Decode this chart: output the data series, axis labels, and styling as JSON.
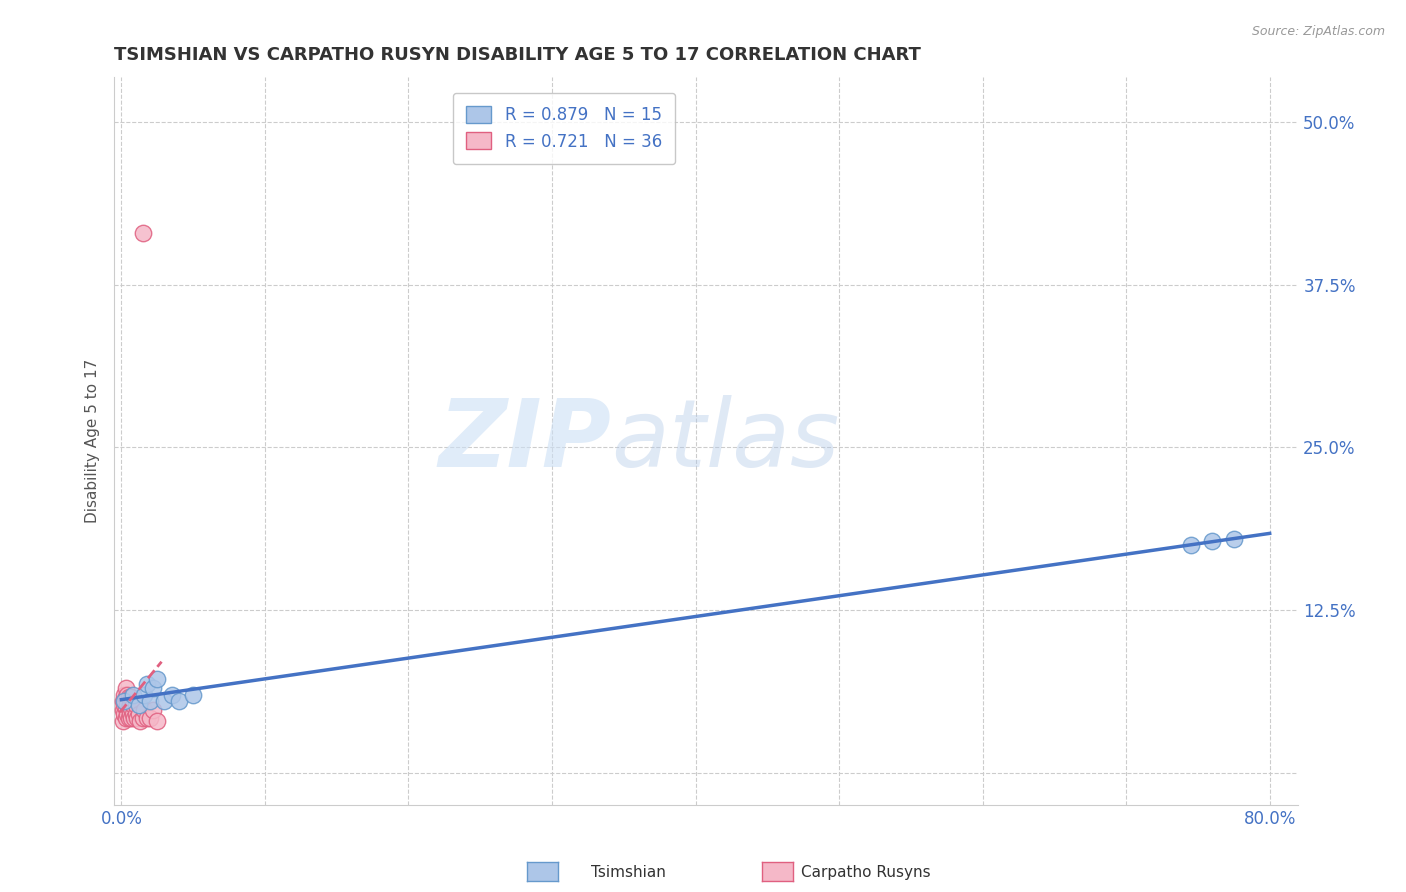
{
  "title": "TSIMSHIAN VS CARPATHO RUSYN DISABILITY AGE 5 TO 17 CORRELATION CHART",
  "source": "Source: ZipAtlas.com",
  "ylabel": "Disability Age 5 to 17",
  "xlim": [
    -0.005,
    0.82
  ],
  "ylim": [
    -0.025,
    0.535
  ],
  "x_ticks": [
    0.0,
    0.1,
    0.2,
    0.3,
    0.4,
    0.5,
    0.6,
    0.7,
    0.8
  ],
  "x_tick_labels": [
    "0.0%",
    "",
    "",
    "",
    "",
    "",
    "",
    "",
    "80.0%"
  ],
  "y_ticks": [
    0.0,
    0.125,
    0.25,
    0.375,
    0.5
  ],
  "y_tick_labels": [
    "",
    "12.5%",
    "25.0%",
    "37.5%",
    "50.0%"
  ],
  "grid_color": "#cccccc",
  "background_color": "#ffffff",
  "tsimshian_color": "#adc6e8",
  "tsimshian_edge_color": "#6699cc",
  "carpatho_color": "#f5b8c8",
  "carpatho_edge_color": "#e06080",
  "tsimshian_line_color": "#4472c4",
  "carpatho_line_color": "#e06080",
  "legend_label_1": "R = 0.879   N = 15",
  "legend_label_2": "R = 0.721   N = 36",
  "watermark_zip": "ZIP",
  "watermark_atlas": "atlas",
  "tsimshian_x": [
    0.002,
    0.008,
    0.012,
    0.016,
    0.018,
    0.02,
    0.022,
    0.025,
    0.03,
    0.035,
    0.04,
    0.05,
    0.745,
    0.76,
    0.775
  ],
  "tsimshian_y": [
    0.055,
    0.06,
    0.052,
    0.06,
    0.068,
    0.055,
    0.065,
    0.072,
    0.055,
    0.06,
    0.055,
    0.06,
    0.175,
    0.178,
    0.18
  ],
  "carpatho_x": [
    0.001,
    0.001,
    0.001,
    0.002,
    0.002,
    0.002,
    0.003,
    0.003,
    0.003,
    0.003,
    0.004,
    0.004,
    0.004,
    0.005,
    0.005,
    0.005,
    0.006,
    0.006,
    0.007,
    0.007,
    0.007,
    0.008,
    0.008,
    0.009,
    0.01,
    0.01,
    0.011,
    0.012,
    0.013,
    0.015,
    0.016,
    0.018,
    0.02,
    0.022,
    0.025,
    0.015
  ],
  "carpatho_y": [
    0.04,
    0.048,
    0.055,
    0.045,
    0.052,
    0.06,
    0.042,
    0.05,
    0.058,
    0.065,
    0.045,
    0.053,
    0.06,
    0.042,
    0.05,
    0.058,
    0.045,
    0.052,
    0.042,
    0.05,
    0.058,
    0.045,
    0.052,
    0.042,
    0.045,
    0.052,
    0.042,
    0.045,
    0.04,
    0.042,
    0.048,
    0.042,
    0.042,
    0.048,
    0.04,
    0.415
  ],
  "carpatho_line_x": [
    -0.001,
    0.028
  ],
  "tsimshian_line_x": [
    0.0,
    0.8
  ]
}
